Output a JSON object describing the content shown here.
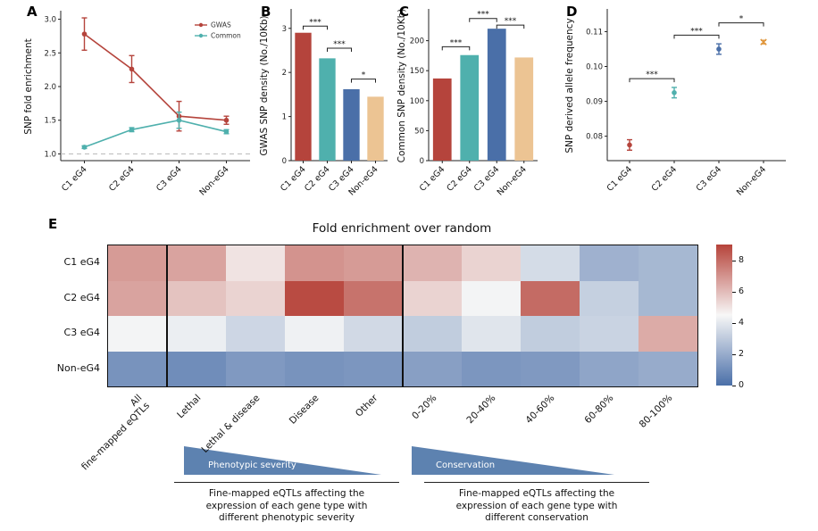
{
  "colors": {
    "red": "#b5443c",
    "teal": "#4fb0ad",
    "blue": "#4a6fa8",
    "tan": "#ecc493",
    "orange": "#e0973e",
    "triangle": "#5d82b0",
    "heat_low": "#4a6fa8",
    "heat_high": "#b6433a",
    "dashed": "#bbbbbb"
  },
  "panels": {
    "a_label": "A",
    "b_label": "B",
    "c_label": "C",
    "d_label": "D",
    "e_label": "E"
  },
  "chart_data": [
    {
      "panel": "A",
      "type": "line",
      "categories": [
        "C1 eG4",
        "C2 eG4",
        "C3 eG4",
        "Non-eG4"
      ],
      "ylabel": "SNP fold enrichment",
      "ylim": [
        0.9,
        3.1
      ],
      "yticks": [
        1.0,
        1.5,
        2.0,
        2.5,
        3.0
      ],
      "ytick_labels": [
        "1.0",
        "1.5",
        "2.0",
        "2.5",
        "3.0"
      ],
      "reference_line": 1.0,
      "legend_position": "top-right",
      "series": [
        {
          "name": "GWAS",
          "color_key": "red",
          "values": [
            2.78,
            2.26,
            1.56,
            1.5
          ],
          "errors": [
            0.24,
            0.2,
            0.22,
            0.06
          ]
        },
        {
          "name": "Common",
          "color_key": "teal",
          "values": [
            1.1,
            1.36,
            1.5,
            1.33
          ],
          "errors": [
            0.02,
            0.03,
            0.12,
            0.03
          ]
        }
      ]
    },
    {
      "panel": "B",
      "type": "bar",
      "categories": [
        "C1 eG4",
        "C2 eG4",
        "C3 eG4",
        "Non-eG4"
      ],
      "ylabel": "GWAS SNP density (No./10Kb)",
      "ylim": [
        0,
        3.4
      ],
      "yticks": [
        0,
        1,
        2,
        3
      ],
      "ytick_labels": [
        "0",
        "1",
        "2",
        "3"
      ],
      "values": [
        2.9,
        2.32,
        1.62,
        1.45
      ],
      "color_keys": [
        "red",
        "teal",
        "blue",
        "tan"
      ],
      "brackets": [
        {
          "from": 0,
          "to": 1,
          "y": 3.05,
          "label": "***"
        },
        {
          "from": 1,
          "to": 2,
          "y": 2.55,
          "label": "***"
        },
        {
          "from": 2,
          "to": 3,
          "y": 1.85,
          "label": "*"
        }
      ]
    },
    {
      "panel": "C",
      "type": "bar",
      "categories": [
        "C1 eG4",
        "C2 eG4",
        "C3 eG4",
        "Non-eG4"
      ],
      "ylabel": "Common SNP density (No./10Kb)",
      "ylim": [
        0,
        250
      ],
      "yticks": [
        0,
        50,
        100,
        150,
        200
      ],
      "ytick_labels": [
        "0",
        "50",
        "100",
        "150",
        "200"
      ],
      "values": [
        137,
        176,
        220,
        172
      ],
      "color_keys": [
        "red",
        "teal",
        "blue",
        "tan"
      ],
      "brackets": [
        {
          "from": 0,
          "to": 1,
          "y": 190,
          "label": "***"
        },
        {
          "from": 1,
          "to": 2,
          "y": 237,
          "label": "***"
        },
        {
          "from": 2,
          "to": 3,
          "y": 226,
          "label": "***"
        }
      ]
    },
    {
      "panel": "D",
      "type": "point",
      "categories": [
        "C1 eG4",
        "C2 eG4",
        "C3 eG4",
        "Non-eG4"
      ],
      "ylabel": "SNP derived allele frequency",
      "ylim": [
        0.073,
        0.116
      ],
      "yticks": [
        0.08,
        0.09,
        0.1,
        0.11
      ],
      "ytick_labels": [
        "0.08",
        "0.09",
        "0.10",
        "0.11"
      ],
      "values": [
        0.0775,
        0.0925,
        0.105,
        0.107
      ],
      "errors": [
        0.0015,
        0.0015,
        0.0015,
        0.0005
      ],
      "color_keys": [
        "red",
        "teal",
        "blue",
        "orange"
      ],
      "markers": [
        "circle",
        "circle",
        "circle",
        "x"
      ],
      "brackets": [
        {
          "from": 0,
          "to": 1,
          "y": 0.0965,
          "label": "***"
        },
        {
          "from": 1,
          "to": 2,
          "y": 0.109,
          "label": "***"
        },
        {
          "from": 2,
          "to": 3,
          "y": 0.1125,
          "label": "*"
        }
      ]
    },
    {
      "panel": "E",
      "type": "heatmap",
      "title": "Fold enrichment over random",
      "rows": [
        "C1 eG4",
        "C2 eG4",
        "C3 eG4",
        "Non-eG4"
      ],
      "columns": [
        "All\nfine-mapped eQTLs",
        "Lethal",
        "Lethal & disease",
        "Disease",
        "Other",
        "0-20%",
        "20-40%",
        "40-60%",
        "60-80%",
        "80-100%"
      ],
      "values": [
        [
          6.8,
          6.6,
          5.0,
          7.0,
          6.8,
          6.2,
          5.4,
          3.6,
          2.2,
          2.4
        ],
        [
          6.6,
          5.8,
          5.4,
          8.8,
          7.8,
          5.4,
          4.4,
          8.0,
          3.2,
          2.4
        ],
        [
          4.4,
          4.2,
          3.4,
          4.3,
          3.5,
          3.1,
          3.9,
          3.1,
          3.3,
          6.4
        ],
        [
          1.2,
          1.0,
          1.4,
          1.2,
          1.3,
          1.6,
          1.3,
          1.4,
          1.8,
          2.0
        ]
      ],
      "vmin": 0,
      "vmax": 9,
      "colorbar_ticks": [
        8,
        6,
        4,
        2,
        0
      ],
      "group_separators_after": [
        0,
        4
      ],
      "triangles": [
        {
          "label": "Phenotypic severity"
        },
        {
          "label": "Conservation"
        }
      ],
      "captions": [
        "Fine-mapped eQTLs affecting the\nexpression of each gene type with\ndifferent phenotypic severity",
        "Fine-mapped eQTLs affecting the\nexpression of each gene type with\ndifferent conservation"
      ]
    }
  ]
}
